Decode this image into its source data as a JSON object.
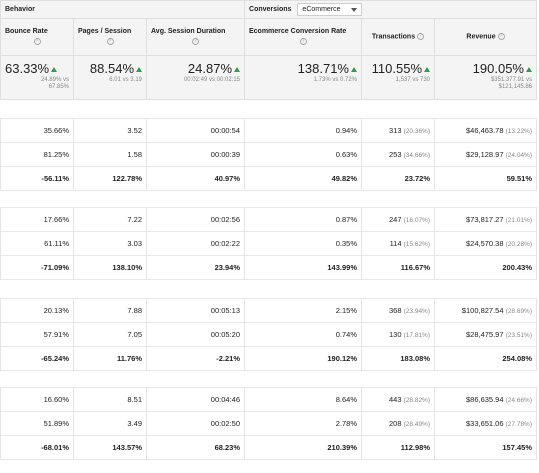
{
  "group_header": {
    "behavior_label": "Behavior",
    "conversions_label": "Conversions",
    "conversions_selected": "eCommerce"
  },
  "columns": [
    "Bounce Rate",
    "Pages / Session",
    "Avg. Session Duration",
    "Ecommerce Conversion Rate",
    "Transactions",
    "Revenue"
  ],
  "help_glyph": "?",
  "summary": {
    "bounce_rate": {
      "main": "63.33%",
      "sub": [
        "24.89% vs",
        "67.85%"
      ]
    },
    "pages_session": {
      "main": "88.54%",
      "sub": [
        "6.01 vs 3.19"
      ]
    },
    "avg_duration": {
      "main": "24.87%",
      "sub": [
        "00:02:49 vs 00:02:15"
      ]
    },
    "conversion_rate": {
      "main": "138.71%",
      "sub": [
        "1.73% vs 0.72%"
      ]
    },
    "transactions": {
      "main": "110.55%",
      "sub": [
        "1,537 vs 730"
      ]
    },
    "revenue": {
      "main": "190.05%",
      "sub": [
        "$351,377.91 vs",
        "$121,145.86"
      ]
    },
    "up_color": "#2e9c4e"
  },
  "segments": [
    {
      "rows": [
        {
          "bounce": "35.66%",
          "pages": "3.52",
          "duration": "00:00:54",
          "conv": "0.94%",
          "trans": "313",
          "trans_pct": "(20.36%)",
          "rev": "$46,463.78",
          "rev_pct": "(13.22%)"
        },
        {
          "bounce": "81.25%",
          "pages": "1.58",
          "duration": "00:00:39",
          "conv": "0.63%",
          "trans": "253",
          "trans_pct": "(34.66%)",
          "rev": "$29,128.97",
          "rev_pct": "(24.04%)"
        }
      ],
      "change": {
        "bounce": "-56.11%",
        "pages": "122.78%",
        "duration": "40.97%",
        "conv": "49.82%",
        "trans": "23.72%",
        "rev": "59.51%"
      }
    },
    {
      "rows": [
        {
          "bounce": "17.66%",
          "pages": "7.22",
          "duration": "00:02:56",
          "conv": "0.87%",
          "trans": "247",
          "trans_pct": "(16.07%)",
          "rev": "$73,817.27",
          "rev_pct": "(21.01%)"
        },
        {
          "bounce": "61.11%",
          "pages": "3.03",
          "duration": "00:02:22",
          "conv": "0.35%",
          "trans": "114",
          "trans_pct": "(15.62%)",
          "rev": "$24,570.38",
          "rev_pct": "(20.28%)"
        }
      ],
      "change": {
        "bounce": "-71.09%",
        "pages": "138.10%",
        "duration": "23.94%",
        "conv": "143.99%",
        "trans": "116.67%",
        "rev": "200.43%"
      }
    },
    {
      "rows": [
        {
          "bounce": "20.13%",
          "pages": "7.88",
          "duration": "00:05:13",
          "conv": "2.15%",
          "trans": "368",
          "trans_pct": "(23.94%)",
          "rev": "$100,827.54",
          "rev_pct": "(28.69%)"
        },
        {
          "bounce": "57.91%",
          "pages": "7.05",
          "duration": "00:05:20",
          "conv": "0.74%",
          "trans": "130",
          "trans_pct": "(17.81%)",
          "rev": "$28,475.97",
          "rev_pct": "(23.51%)"
        }
      ],
      "change": {
        "bounce": "-65.24%",
        "pages": "11.76%",
        "duration": "-2.21%",
        "conv": "190.12%",
        "trans": "183.08%",
        "rev": "254.08%"
      }
    },
    {
      "rows": [
        {
          "bounce": "16.60%",
          "pages": "8.51",
          "duration": "00:04:46",
          "conv": "8.64%",
          "trans": "443",
          "trans_pct": "(28.82%)",
          "rev": "$86,635.94",
          "rev_pct": "(24.66%)"
        },
        {
          "bounce": "51.89%",
          "pages": "3.49",
          "duration": "00:02:50",
          "conv": "2.78%",
          "trans": "208",
          "trans_pct": "(28.49%)",
          "rev": "$33,651.06",
          "rev_pct": "(27.78%)"
        }
      ],
      "change": {
        "bounce": "-68.01%",
        "pages": "143.57%",
        "duration": "68.23%",
        "conv": "210.39%",
        "trans": "112.98%",
        "rev": "157.45%"
      }
    }
  ]
}
